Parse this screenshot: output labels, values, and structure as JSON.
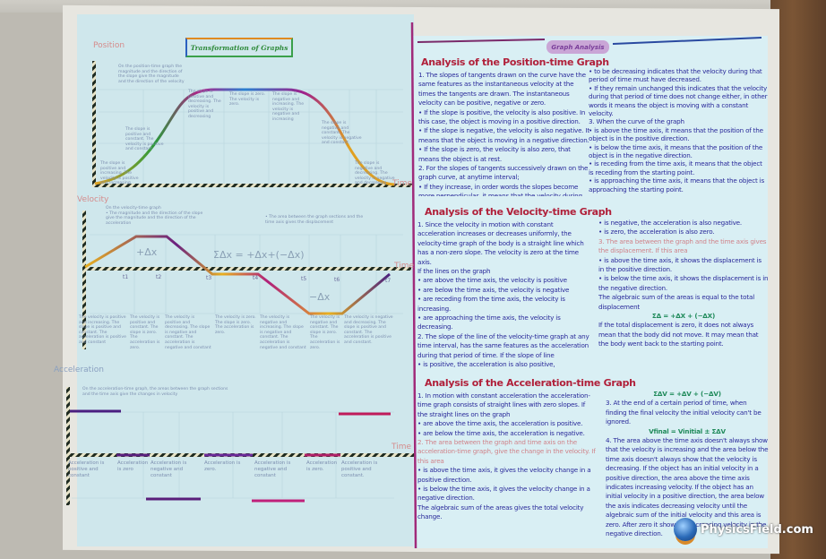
{
  "poster": {
    "left_title": "Transformation of Graphs",
    "right_title": "Graph Analysis",
    "position_graph": {
      "y_label": "Position",
      "x_label": "Time",
      "intro": "On the position-time graph the magnitude and the direction of the slope give the magnitude and the direction of the velocity",
      "notes": [
        "The slope is positive and increasing. The velocity is positive and increasing",
        "The slope is positive and constant. The velocity is positive and constant",
        "The slope is positive and decreasing. The velocity is positive and decreasing",
        "The slope is zero. The velocity is zero.",
        "The slope is negative and increasing. The velocity is negative and increasing",
        "The slope is negative and constant. The velocity is negative and constant",
        "The slope is negative and decreasing. The velocity is negative and decreasing"
      ]
    },
    "velocity_graph": {
      "y_label": "Velocity",
      "x_label": "Time",
      "intro": "On the velocity-time graph\n• The magnitude and the direction of the slope give the magnitude and the direction of the acceleration",
      "intro2": "• The area between the graph sections and the time axis gives the displacement",
      "ticks": [
        "t1",
        "t2",
        "t3",
        "t4",
        "t5",
        "t6",
        "t7"
      ],
      "area_pos": "+Δx",
      "area_neg": "−Δx",
      "sum": "ΣΔx = +Δx+(−Δx)",
      "notes": [
        "The velocity is positive and increasing. The slope is positive and constant. The acceleration is positive and constant",
        "The velocity is positive and constant. The slope is zero. The acceleration is zero.",
        "The velocity is positive and decreasing. The slope is negative and constant. The acceleration is negative and constant",
        "The velocity is zero. The slope is zero. The acceleration is zero.",
        "The velocity is negative and increasing. The slope is negative and constant. The acceleration is negative and constant",
        "The velocity is negative and constant. The slope is zero. The acceleration is zero.",
        "The velocity is negative and decreasing. The slope is positive and constant. The acceleration is positive and constant."
      ]
    },
    "acceleration_graph": {
      "y_label": "Acceleration",
      "x_label": "Time",
      "intro": "On the acceleration-time graph, the areas between the graph sections and the time axis give the changes in velocity",
      "notes": [
        "Acceleration is positive and constant",
        "Acceleration is zero",
        "Acceleration is negative and constant",
        "Acceleration is zero.",
        "Acceleration is negative and constant",
        "Acceleration is zero.",
        "Acceleration is positive and constant."
      ]
    },
    "sections": [
      {
        "heading": "Analysis of the Position-time Graph",
        "left": [
          "1. The slopes of tangents drawn on the curve have the same features as the instantaneous velocity at the times the tangents are drawn. The instantaneous velocity can be positive, negative or zero.",
          "• If the slope is positive, the velocity is also positive. In this case, the object is moving in a positive direction.",
          "• If the slope is negative, the velocity is also negative. It means that the object is moving in a negative direction.",
          "• If the slope is zero, the velocity is also zero, that means the object is at rest.",
          "2. For the slopes of tangents successively drawn on the graph curve, at anytime interval;",
          "• If they increase, in order words the slopes become more perpendicular, it means that the velocity during that period of time must have increased."
        ],
        "right": [
          "• to be decreasing indicates that the velocity during that period of time must have decreased.",
          "• If they remain unchanged this indicates that the velocity during that period of time does not change either, in other words it means the object is moving with a constant velocity.",
          "3. When the curve of the graph",
          "• is above the time axis, it means that the position of the object is in the positive direction.",
          "• is below the time axis, it means that the position of the object is in the negative direction.",
          "• is receding from the time axis, it means that the object is receding from the starting point.",
          "• is approaching the time axis, it means that the object is approaching the starting point."
        ]
      },
      {
        "heading": "Analysis of the Velocity-time Graph",
        "left": [
          "1. Since the velocity in motion with constant acceleration increases or decreases uniformly, the velocity-time graph of the body is a straight line which has a non-zero slope. The velocity is zero at the time axis.",
          "If the lines on the graph",
          "• are above the time axis, the velocity is positive",
          "• are below the time axis, the velocity is negative",
          "• are receding from the time axis, the velocity is increasing.",
          "• are approaching the time axis, the velocity is decreasing.",
          "2. The slope of the line of the velocity-time graph at any time interval, has the same features as the acceleration during that period of time. If the slope of line",
          "• is positive, the acceleration is also positive,"
        ],
        "right": [
          "• is negative, the acceleration is also negative.",
          "• is zero, the acceleration is also zero.",
          "3. The area between the graph and the time axis gives the displacement. If this area",
          "• is above the time axis, it shows the displacement is in the positive direction.",
          "• is below the time axis, it shows the displacement is in the negative direction.",
          "The algebraic sum of the areas is equal to the total displacement",
          "ΣΔ = +ΔX + (−ΔX)",
          "If the total displacement is zero, it does not always mean that the body did not move. It may mean that the body went back to the starting point."
        ]
      },
      {
        "heading": "Analysis of the Acceleration-time Graph",
        "left": [
          "1. In motion with constant acceleration the acceleration-time graph consists of straight lines with zero slopes. If the straight lines on the graph",
          "• are above the time axis, the acceleration is positive.",
          "• are below the time axis, the acceleration is negative.",
          "2. The area between the graph and time axis on the acceleration-time graph, give the change in the velocity. If this area",
          "• is above the time axis, it gives the velocity change in a positive direction.",
          "• is below the time axis, it gives the velocity change in a negative direction.",
          "The algebraic sum of the areas gives the total velocity change."
        ],
        "right": [
          "ΣΔV = +ΔV + (−ΔV)",
          "3. At the end of a certain period of time, when finding the final velocity the initial velocity can't be ignored.",
          "Vfinal = Vinitial ± ΣΔV",
          "4. The area above the time axis doesn't always show that the velocity is increasing and the area below the time axis doesn't always show that the velocity is decreasing. If the object has an initial velocity in a positive direction, the area above the time axis indicates increasing velocity. If the object has an initial velocity in a positive direction, the area below the axis indicates decreasing velocity until the algebraic sum of the initial velocity and this area is zero. After zero it shows an increasing velocity in the negative direction."
        ]
      }
    ]
  },
  "watermark": "PhysicsField.com"
}
